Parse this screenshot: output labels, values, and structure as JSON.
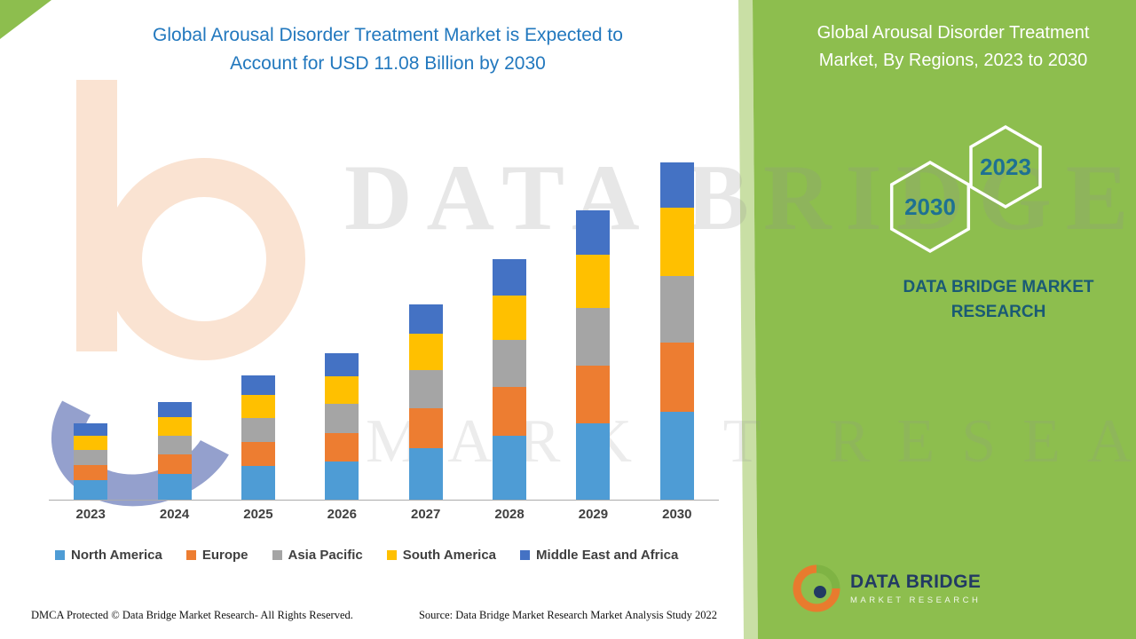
{
  "header": {
    "title_line1": "Global Arousal Disorder Treatment Market is Expected to",
    "title_line2": "Account for USD 11.08 Billion by 2030"
  },
  "right_panel": {
    "title_line1": "Global Arousal Disorder Treatment",
    "title_line2": "Market, By Regions, 2023 to 2030",
    "hexagon_2030": "2030",
    "hexagon_2023": "2023",
    "brand_line1": "DATA BRIDGE MARKET",
    "brand_line2": "RESEARCH"
  },
  "watermark": {
    "line1": "DATA BRIDGE",
    "line2": "MARKET RESEARCH"
  },
  "logo": {
    "title": "DATA BRIDGE",
    "subtitle": "MARKET RESEARCH"
  },
  "footer": {
    "dmca": "DMCA Protected © Data Bridge Market Research- All Rights Reserved.",
    "source": "Source: Data Bridge Market Research Market Analysis Study 2022"
  },
  "chart_data": {
    "type": "bar",
    "stacked": true,
    "title": "Global Arousal Disorder Treatment Market is Expected to Account for USD 11.08 Billion by 2030",
    "unit": "USD Billion",
    "categories": [
      "2023",
      "2024",
      "2025",
      "2026",
      "2027",
      "2028",
      "2029",
      "2030"
    ],
    "series": [
      {
        "name": "North America",
        "color": "#4E9CD5",
        "values": [
          0.65,
          0.85,
          1.1,
          1.25,
          1.7,
          2.1,
          2.5,
          2.9
        ]
      },
      {
        "name": "Europe",
        "color": "#ED7D31",
        "values": [
          0.5,
          0.65,
          0.8,
          0.95,
          1.3,
          1.6,
          1.9,
          2.25
        ]
      },
      {
        "name": "Asia Pacific",
        "color": "#A5A5A5",
        "values": [
          0.5,
          0.6,
          0.8,
          0.95,
          1.25,
          1.55,
          1.9,
          2.2
        ]
      },
      {
        "name": "South America",
        "color": "#FFC000",
        "values": [
          0.45,
          0.6,
          0.75,
          0.9,
          1.2,
          1.45,
          1.75,
          2.25
        ]
      },
      {
        "name": "Middle East and Africa",
        "color": "#4472C4",
        "values": [
          0.4,
          0.5,
          0.65,
          0.75,
          0.95,
          1.2,
          1.45,
          1.48
        ]
      }
    ],
    "totals": [
      2.5,
      3.2,
      4.1,
      4.8,
      6.4,
      7.9,
      9.5,
      11.08
    ],
    "ylim": [
      0,
      11.08
    ],
    "xlabel": "",
    "ylabel": "",
    "grid": false,
    "legend_position": "bottom"
  }
}
